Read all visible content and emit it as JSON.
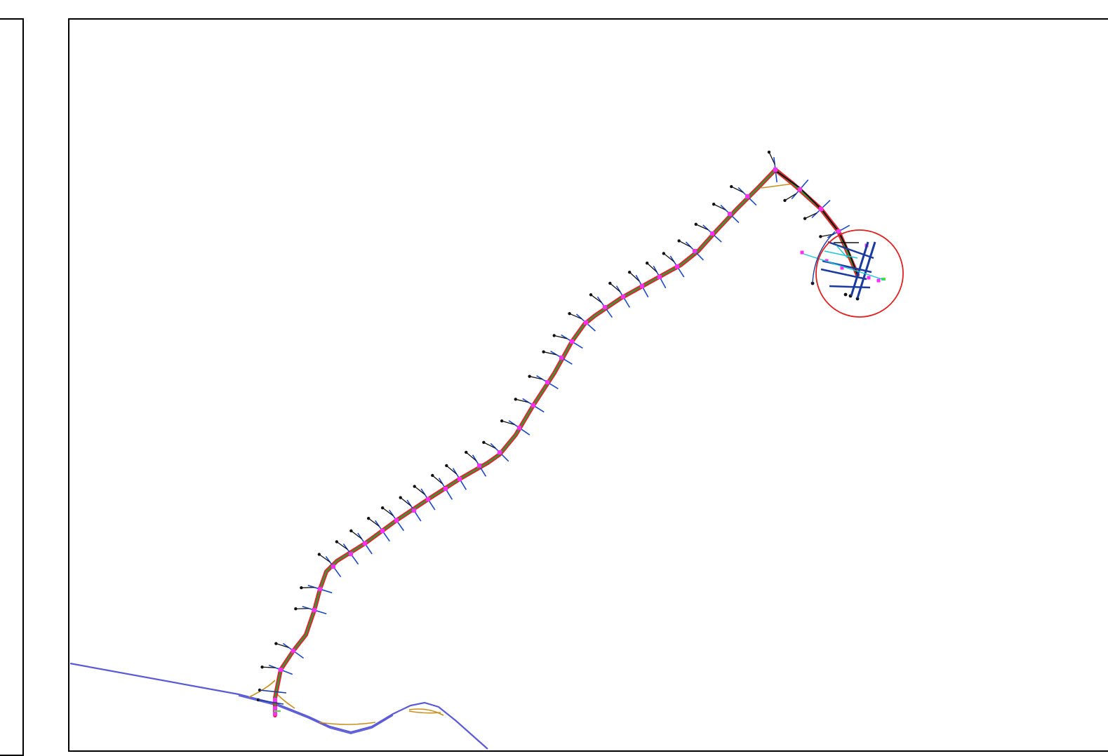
{
  "colors": {
    "background": "#ffffff",
    "frame_border": "#000000",
    "route_outline": "#e8202a",
    "route_center": "#2f9a3a",
    "route_edge_highlight": "#4ddf3a",
    "station_marker": "#ff2ef2",
    "cross_section": "#1b48c8",
    "survey_pole": "#111111",
    "river": "#5a5ad6",
    "terrain_contour": "#c98f1c",
    "focus_circle": "#e02020",
    "depot_track": "#1a3aa0",
    "depot_aux": "#18c8d8"
  },
  "icons": {
    "station_marker": "square-marker-icon",
    "survey_pole": "pole-end-icon",
    "focus_circle": "highlight-circle-icon"
  },
  "map_layers": [
    "alignment",
    "stations",
    "cross-sections",
    "survey-poles",
    "river",
    "terrain",
    "depot",
    "focus-circle"
  ]
}
